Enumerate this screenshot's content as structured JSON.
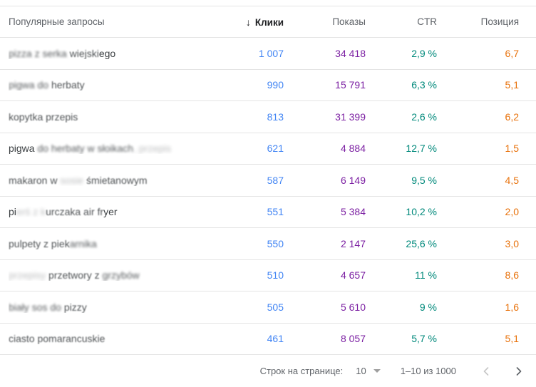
{
  "table": {
    "sort_icon": "↓",
    "columns": [
      {
        "id": "query",
        "label": "Популярные запросы"
      },
      {
        "id": "clicks",
        "label": "Клики",
        "sorted": true
      },
      {
        "id": "impressions",
        "label": "Показы"
      },
      {
        "id": "ctr",
        "label": "CTR"
      },
      {
        "id": "position",
        "label": "Позиция"
      }
    ],
    "rows": [
      {
        "query_parts": [
          {
            "t": "pizza z serka ",
            "b": 2
          },
          {
            "t": "wiejski",
            "b": 1
          },
          {
            "t": "ego",
            "b": 0
          }
        ],
        "clicks": "1 007",
        "impressions": "34 418",
        "ctr": "2,9 %",
        "position": "6,7"
      },
      {
        "query_parts": [
          {
            "t": "pigwa do ",
            "b": 2
          },
          {
            "t": "herbaty",
            "b": 1
          }
        ],
        "clicks": "990",
        "impressions": "15 791",
        "ctr": "6,3 %",
        "position": "5,1"
      },
      {
        "query_parts": [
          {
            "t": "kopytka przepis",
            "b": 1
          }
        ],
        "clicks": "813",
        "impressions": "31 399",
        "ctr": "2,6 %",
        "position": "6,2"
      },
      {
        "query_parts": [
          {
            "t": "pigwa ",
            "b": 0
          },
          {
            "t": "do herbaty w słoikach",
            "b": 2
          },
          {
            "t": ", przepis",
            "b": 3
          }
        ],
        "clicks": "621",
        "impressions": "4 884",
        "ctr": "12,7 %",
        "position": "1,5"
      },
      {
        "query_parts": [
          {
            "t": "makaron w ",
            "b": 1
          },
          {
            "t": "sosie ",
            "b": 3
          },
          {
            "t": "śmietanowym",
            "b": 1
          }
        ],
        "clicks": "587",
        "impressions": "6 149",
        "ctr": "9,5 %",
        "position": "4,5"
      },
      {
        "query_parts": [
          {
            "t": "pi",
            "b": 0
          },
          {
            "t": "erś z k",
            "b": 3
          },
          {
            "t": "urczaka air fr",
            "b": 1
          },
          {
            "t": "yer",
            "b": 0
          }
        ],
        "clicks": "551",
        "impressions": "5 384",
        "ctr": "10,2 %",
        "position": "2,0"
      },
      {
        "query_parts": [
          {
            "t": "pulpety z piek",
            "b": 1
          },
          {
            "t": "arnika",
            "b": 2
          }
        ],
        "clicks": "550",
        "impressions": "2 147",
        "ctr": "25,6 %",
        "position": "3,0"
      },
      {
        "query_parts": [
          {
            "t": "przepisy ",
            "b": 3
          },
          {
            "t": "przetwory z ",
            "b": 1
          },
          {
            "t": "grzybów",
            "b": 2
          }
        ],
        "clicks": "510",
        "impressions": "4 657",
        "ctr": "11 %",
        "position": "8,6"
      },
      {
        "query_parts": [
          {
            "t": "biały sos do ",
            "b": 2
          },
          {
            "t": "pizzy",
            "b": 1
          }
        ],
        "clicks": "505",
        "impressions": "5 610",
        "ctr": "9 %",
        "position": "1,6"
      },
      {
        "query_parts": [
          {
            "t": "ciasto pomarancuskie",
            "b": 1
          }
        ],
        "clicks": "461",
        "impressions": "8 057",
        "ctr": "5,7 %",
        "position": "5,1"
      }
    ]
  },
  "footer": {
    "rows_per_page_label": "Строк на странице:",
    "rows_per_page_value": "10",
    "range_label": "1–10 из 1000"
  },
  "colors": {
    "clicks": "#4285f4",
    "impressions": "#7b1fa2",
    "ctr": "#00897b",
    "position": "#e8710a",
    "header_text": "#5f6368",
    "divider": "#e4e4e4"
  }
}
